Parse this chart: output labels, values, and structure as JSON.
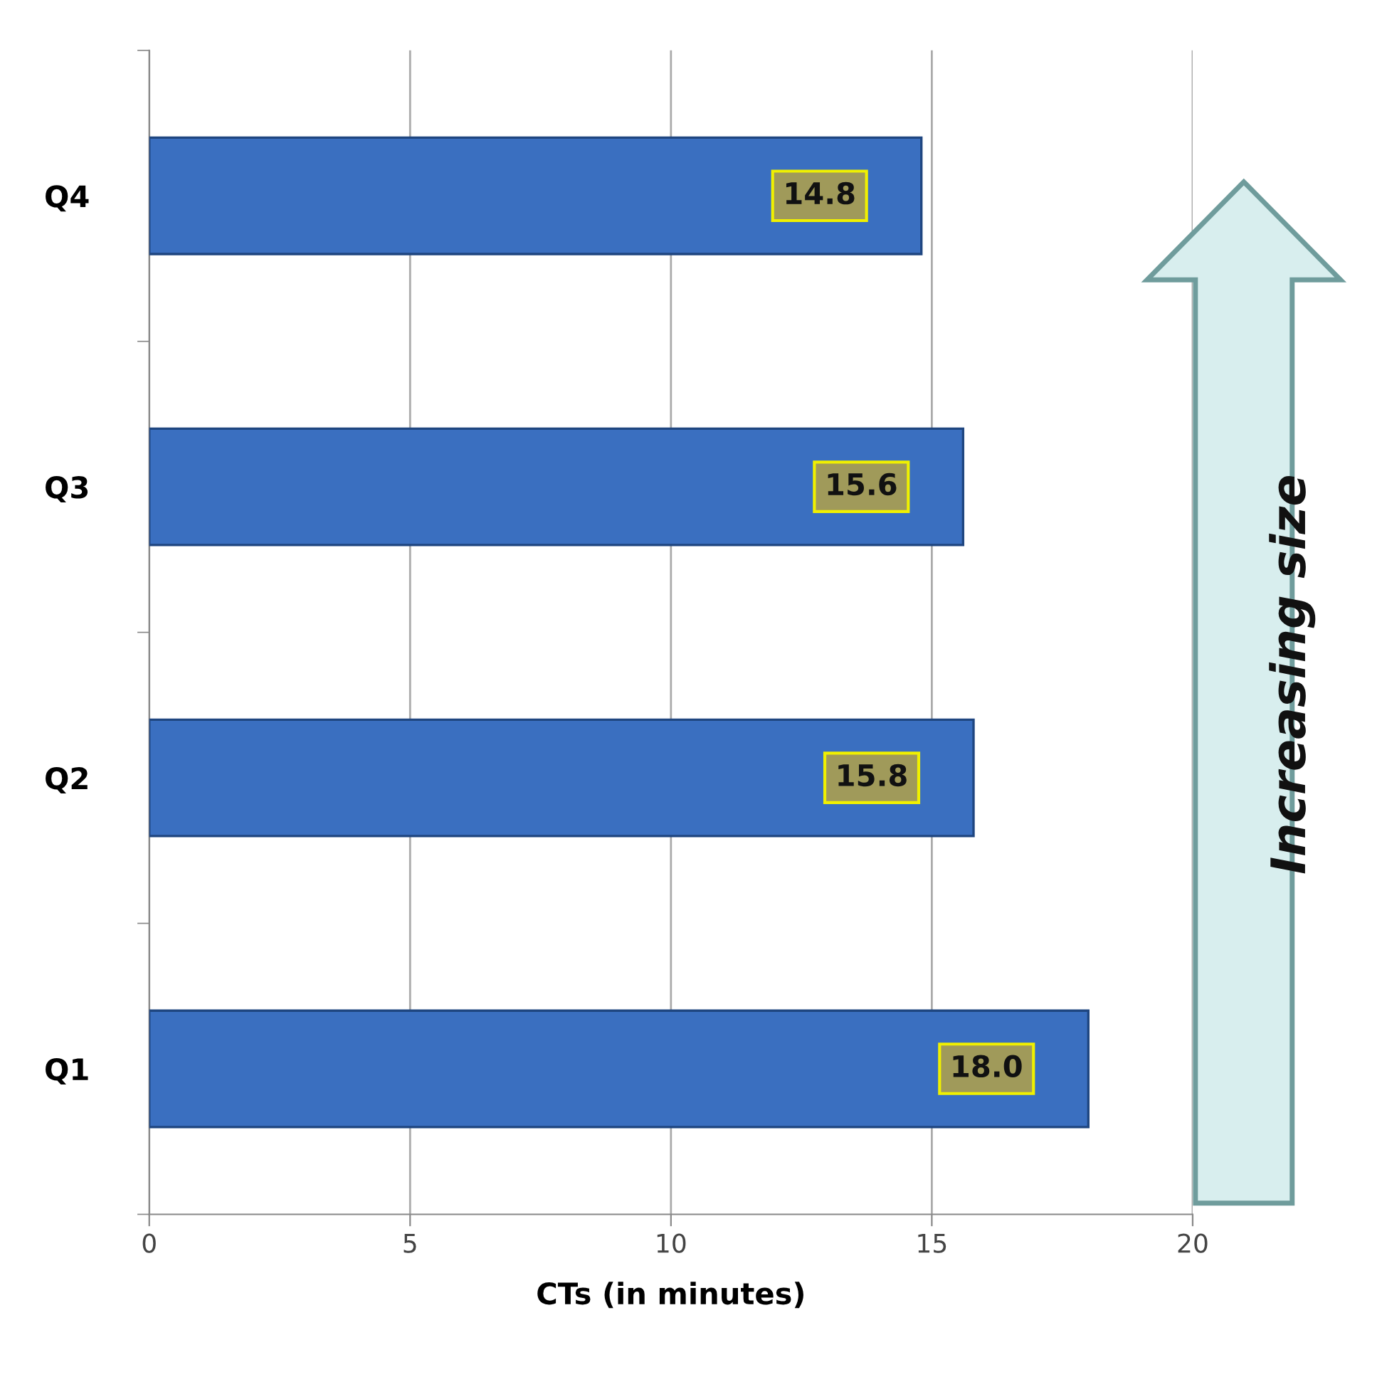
{
  "chart_data": {
    "type": "bar",
    "orientation": "horizontal",
    "categories": [
      "Q4",
      "Q3",
      "Q2",
      "Q1"
    ],
    "values": [
      14.8,
      15.6,
      15.8,
      18.0
    ],
    "value_labels": [
      "14.8",
      "15.6",
      "15.8",
      "18.0"
    ],
    "color": "#3a6fc0",
    "xlabel": "CTs (in minutes)",
    "xlim": [
      0,
      20
    ],
    "xticks": [
      0,
      5,
      10,
      15,
      20
    ],
    "grid": "x",
    "legend": false,
    "annotations": [
      "Increasing size"
    ]
  }
}
